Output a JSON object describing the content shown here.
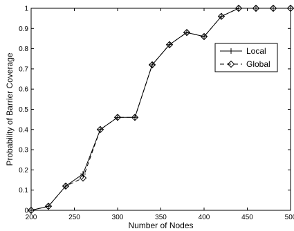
{
  "chart_data": {
    "type": "line",
    "xlabel": "Number of Nodes",
    "ylabel": "Probability of Barrier Coverage",
    "xlim": [
      200,
      500
    ],
    "ylim": [
      0,
      1
    ],
    "x_ticks": [
      200,
      250,
      300,
      350,
      400,
      450,
      500
    ],
    "y_ticks": [
      0,
      0.1,
      0.2,
      0.3,
      0.4,
      0.5,
      0.6,
      0.7,
      0.8,
      0.9,
      1
    ],
    "grid": false,
    "legend_position": "top-right",
    "x": [
      200,
      220,
      240,
      260,
      280,
      300,
      320,
      340,
      360,
      380,
      400,
      420,
      440,
      460,
      480,
      500
    ],
    "series": [
      {
        "name": "Local",
        "marker": "plus",
        "line_style": "solid",
        "values": [
          0,
          0.02,
          0.12,
          0.18,
          0.4,
          0.46,
          0.46,
          0.72,
          0.82,
          0.88,
          0.86,
          0.96,
          1,
          1,
          1,
          1
        ]
      },
      {
        "name": "Global",
        "marker": "diamond",
        "line_style": "dashed",
        "values": [
          0,
          0.02,
          0.12,
          0.16,
          0.4,
          0.46,
          0.46,
          0.72,
          0.82,
          0.88,
          0.86,
          0.96,
          1,
          1,
          1,
          1
        ]
      }
    ]
  }
}
